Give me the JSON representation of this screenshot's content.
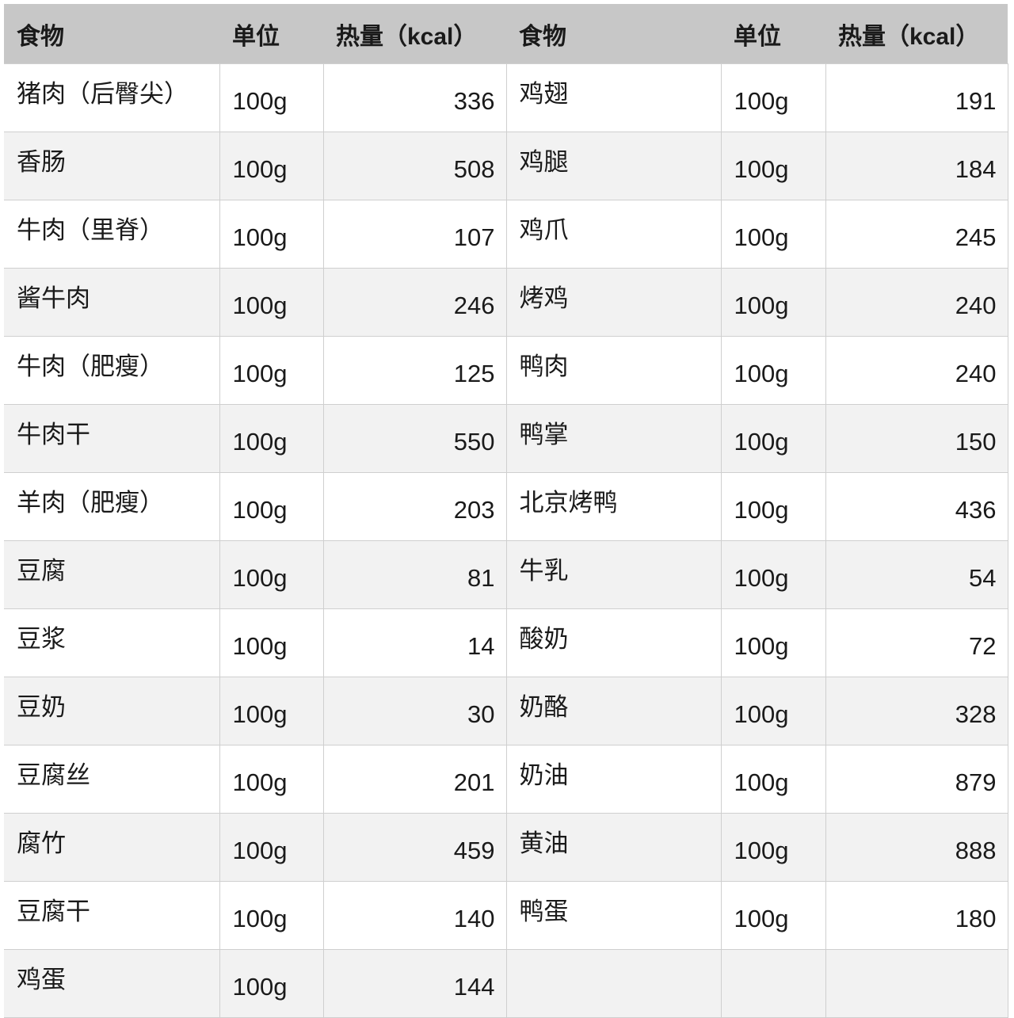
{
  "headers": [
    "食物",
    "单位",
    "热量（kcal）",
    "食物",
    "单位",
    "热量（kcal）"
  ],
  "rows": [
    [
      "猪肉（后臀尖）",
      "100g",
      "336",
      "鸡翅",
      "100g",
      "191"
    ],
    [
      "香肠",
      "100g",
      "508",
      "鸡腿",
      "100g",
      "184"
    ],
    [
      "牛肉（里脊）",
      "100g",
      "107",
      "鸡爪",
      "100g",
      "245"
    ],
    [
      "酱牛肉",
      "100g",
      "246",
      "烤鸡",
      "100g",
      "240"
    ],
    [
      "牛肉（肥瘦）",
      "100g",
      "125",
      "鸭肉",
      "100g",
      "240"
    ],
    [
      "牛肉干",
      "100g",
      "550",
      "鸭掌",
      "100g",
      "150"
    ],
    [
      "羊肉（肥瘦）",
      "100g",
      "203",
      "北京烤鸭",
      "100g",
      "436"
    ],
    [
      "豆腐",
      "100g",
      "81",
      "牛乳",
      "100g",
      "54"
    ],
    [
      "豆浆",
      "100g",
      "14",
      "酸奶",
      "100g",
      "72"
    ],
    [
      "豆奶",
      "100g",
      "30",
      "奶酪",
      "100g",
      "328"
    ],
    [
      "豆腐丝",
      "100g",
      "201",
      "奶油",
      "100g",
      "879"
    ],
    [
      "腐竹",
      "100g",
      "459",
      "黄油",
      "100g",
      "888"
    ],
    [
      "豆腐干",
      "100g",
      "140",
      "鸭蛋",
      "100g",
      "180"
    ],
    [
      "鸡蛋",
      "100g",
      "144",
      "",
      "",
      ""
    ]
  ]
}
